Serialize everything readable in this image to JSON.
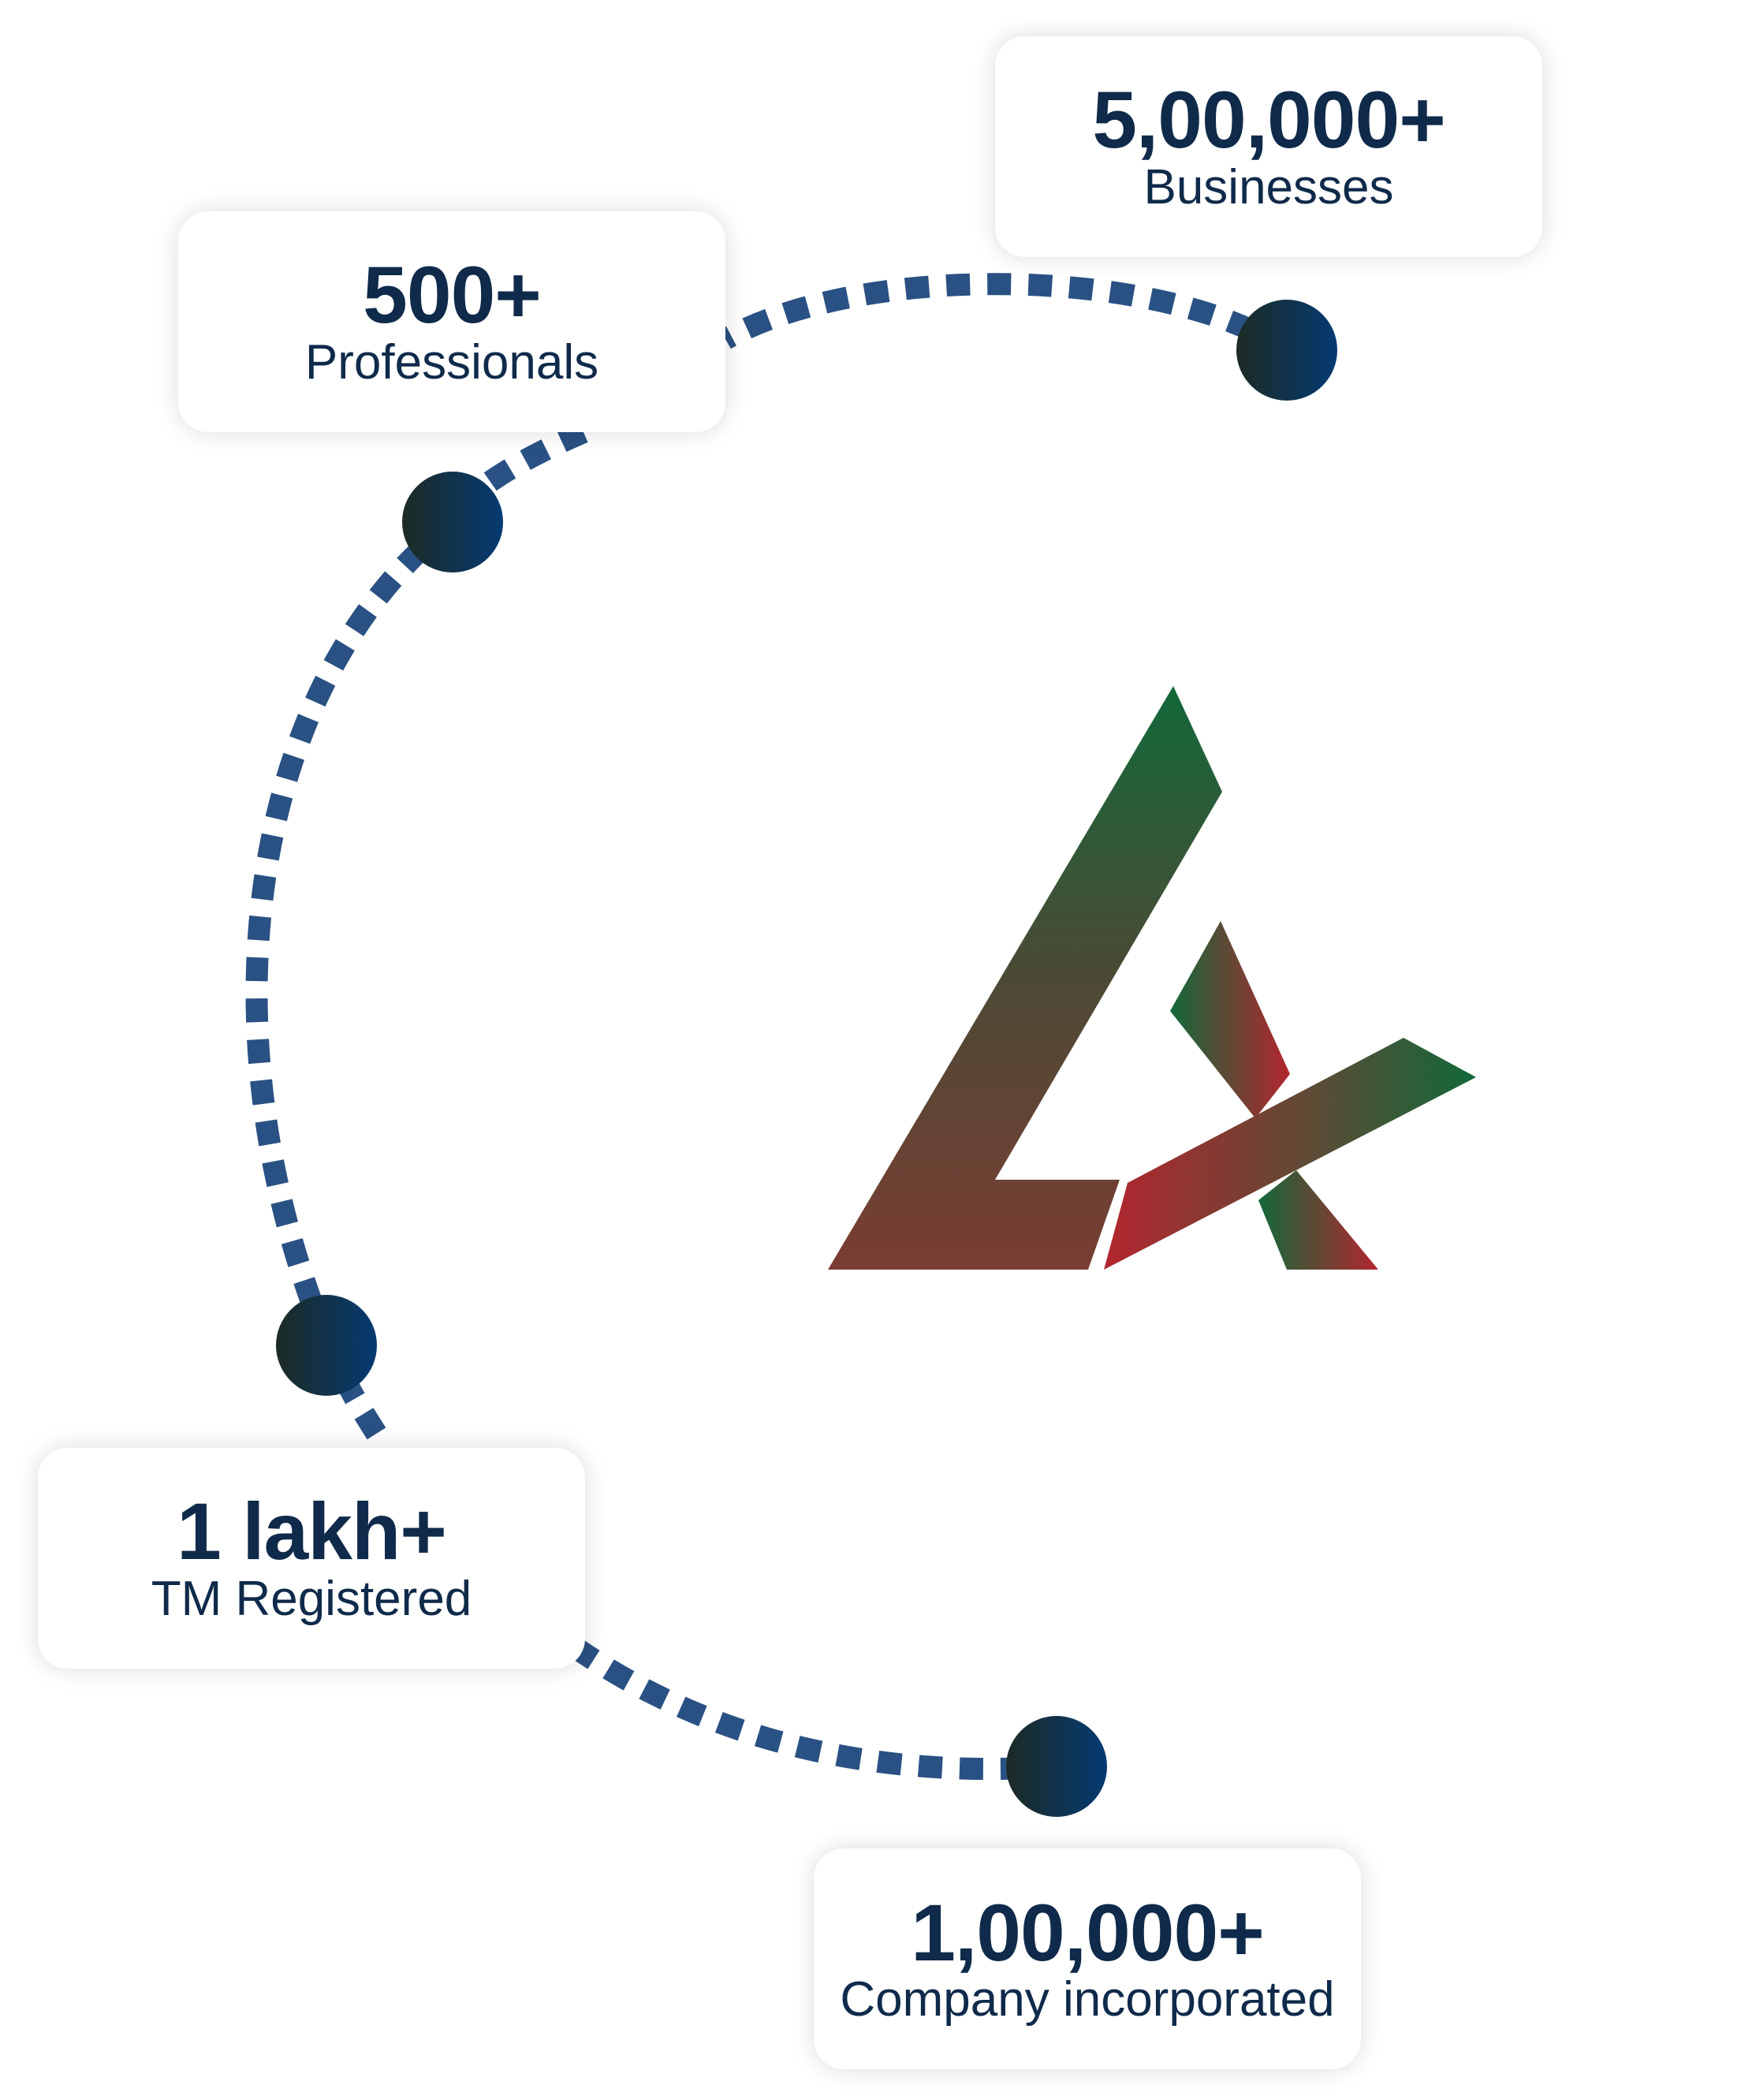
{
  "stats": [
    {
      "value": "5,00,000+",
      "label": "Businesses"
    },
    {
      "value": "500+",
      "label": "Professionals"
    },
    {
      "value": "1 lakh+",
      "label": "TM Registered"
    },
    {
      "value": "1,00,000+",
      "label": "Company incorporated"
    }
  ],
  "colors": {
    "text": "#0f2a4a",
    "dash": "#2a5183",
    "node_start": "#1c2b24",
    "node_end": "#053a72",
    "logo_green": "#13683a",
    "logo_red": "#b3262f",
    "logo_brown": "#7a3d33"
  },
  "icons": {
    "logo": "brand-logo-mark",
    "node": "timeline-dot"
  }
}
